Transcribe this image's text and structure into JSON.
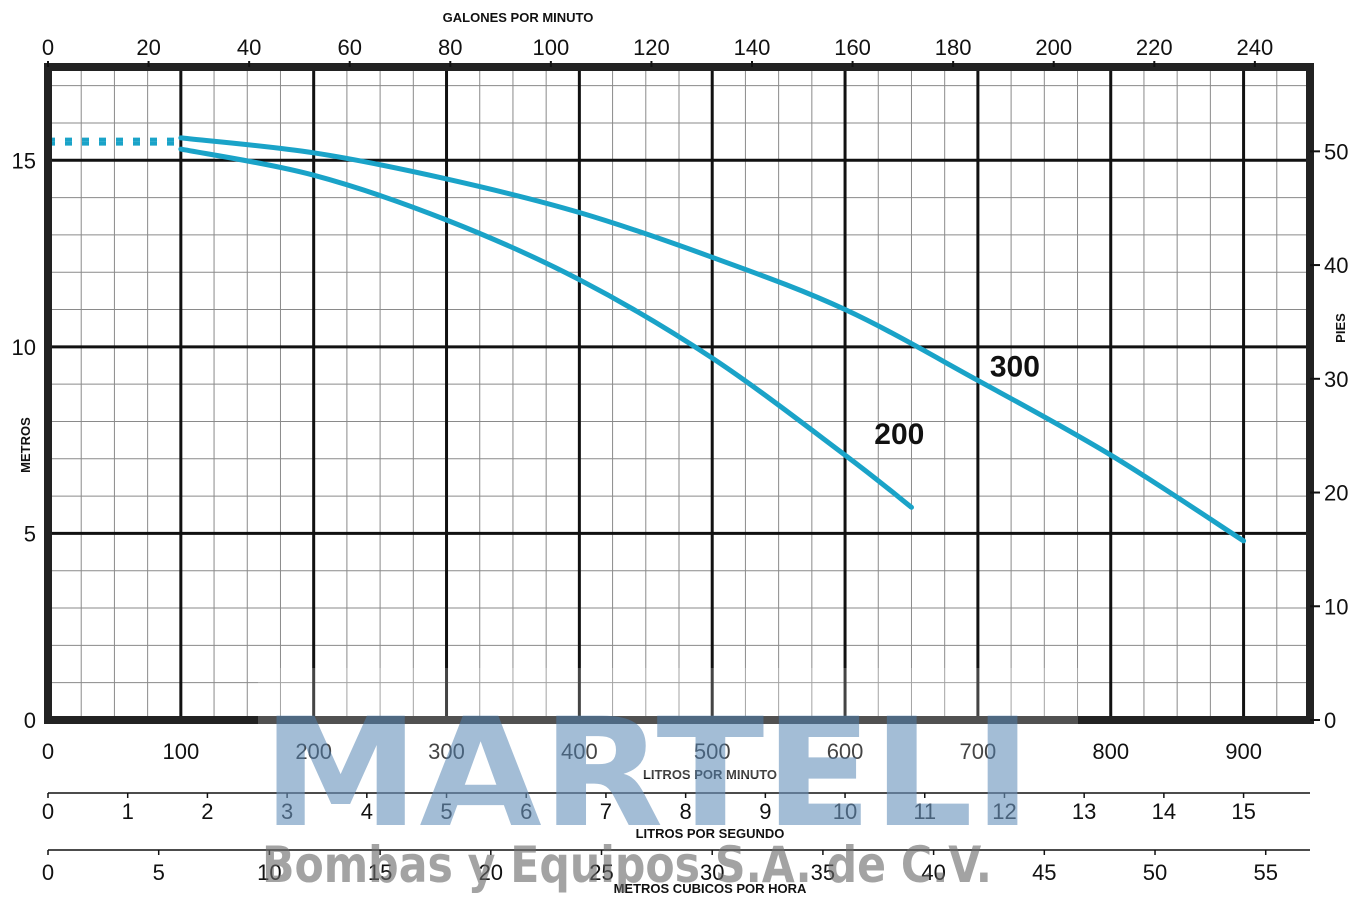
{
  "chart_data": {
    "type": "line",
    "x_primary": {
      "label": "LITROS POR MINUTO",
      "range": [
        0,
        950
      ],
      "ticks": [
        0,
        100,
        200,
        300,
        400,
        500,
        600,
        700,
        800,
        900
      ]
    },
    "x_top": {
      "label": "GALONES POR MINUTO",
      "ticks": [
        0,
        20,
        40,
        60,
        80,
        100,
        120,
        140,
        160,
        180,
        200,
        220,
        240
      ]
    },
    "x_lps": {
      "label": "LITROS POR SEGUNDO",
      "ticks": [
        0,
        1,
        2,
        3,
        4,
        5,
        6,
        7,
        8,
        9,
        10,
        11,
        12,
        13,
        14,
        15
      ]
    },
    "x_m3h": {
      "label": "METROS CUBICOS POR HORA",
      "ticks": [
        0,
        5,
        10,
        15,
        20,
        25,
        30,
        35,
        40,
        45,
        50,
        55
      ]
    },
    "y_left": {
      "label": "METROS",
      "range": [
        0,
        17.5
      ],
      "ticks": [
        0,
        5,
        10,
        15
      ]
    },
    "y_right": {
      "label": "PIES",
      "ticks": [
        0,
        10,
        20,
        30,
        40,
        50
      ]
    },
    "grid": true,
    "series_color": "#1aa3c8",
    "series": [
      {
        "name": "200",
        "x": [
          100,
          200,
          300,
          400,
          500,
          600,
          650
        ],
        "y": [
          15.3,
          14.6,
          13.4,
          11.8,
          9.7,
          7.1,
          5.7
        ],
        "dotted_x": [
          0,
          100
        ],
        "dotted_y": 15.5
      },
      {
        "name": "300",
        "x": [
          100,
          200,
          300,
          400,
          500,
          600,
          700,
          800,
          900
        ],
        "y": [
          15.6,
          15.2,
          14.5,
          13.6,
          12.4,
          11.0,
          9.1,
          7.1,
          4.8
        ],
        "dotted_x": [
          0,
          100
        ],
        "dotted_y": 15.5
      }
    ]
  },
  "watermark": {
    "brand": "MARTELI",
    "tagline": "Bombas y Equipos S.A. de C.V."
  }
}
